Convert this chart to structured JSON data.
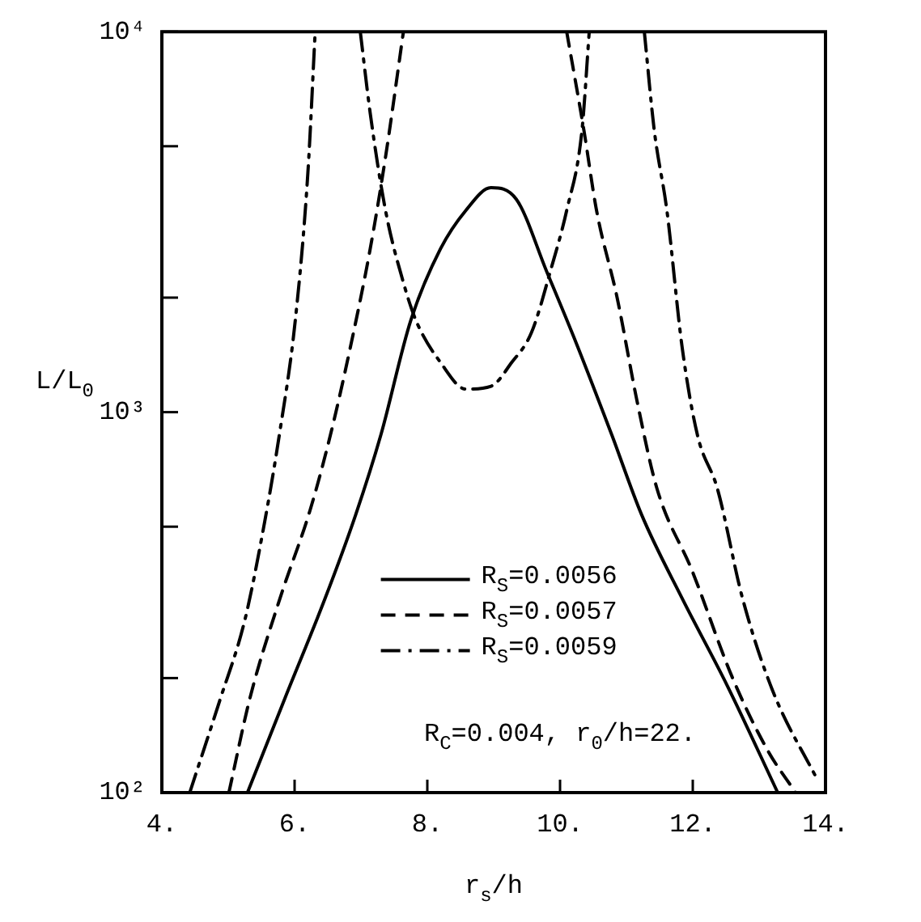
{
  "chart_data": {
    "type": "line",
    "xlabel": "r$_{s}$/h",
    "ylabel": "L/L$_{0}$",
    "log": "y",
    "grid": false,
    "legend": "bottom",
    "marker": "none",
    "xlim": [
      4,
      14
    ],
    "xticks": [
      {
        "value": 4,
        "label": "4."
      },
      {
        "value": 6,
        "label": "6."
      },
      {
        "value": 8,
        "label": "8."
      },
      {
        "value": 10,
        "label": "10."
      },
      {
        "value": 12,
        "label": "12."
      },
      {
        "value": 14,
        "label": "14."
      }
    ],
    "ylim": [
      100,
      10000
    ],
    "yticks": [
      {
        "value": 100,
        "label": "10²"
      },
      {
        "value": 200,
        "label": null
      },
      {
        "value": 500,
        "label": null
      },
      {
        "value": 1000,
        "label": "10³"
      },
      {
        "value": 2000,
        "label": null
      },
      {
        "value": 5000,
        "label": null
      },
      {
        "value": 10000,
        "label": "10⁴"
      }
    ],
    "annotations": [
      "R$_{C}$=0.004, r$_{0}$/h=22."
    ],
    "series": [
      {
        "name": "R$_{S}$=0.0056",
        "color": "#000000",
        "line_style": "solid",
        "x": [
          5.29,
          5.86,
          6.46,
          6.92,
          7.3,
          7.75,
          8.2,
          8.58,
          8.96,
          9.34,
          9.8,
          10.25,
          10.78,
          11.23,
          11.84,
          12.52,
          13.28
        ],
        "values": [
          100,
          178,
          324,
          537,
          871,
          1740,
          2690,
          3390,
          3890,
          3630,
          2340,
          1510,
          871,
          537,
          324,
          191,
          100
        ]
      },
      {
        "name": "R$_{S}$=0.0057",
        "color": "#000000",
        "line_style": "dashed",
        "x": [
          5.01,
          5.33,
          5.78,
          6.23,
          6.54,
          6.84,
          7.14,
          7.37,
          7.64,
          8.8,
          10.1,
          10.36,
          10.55,
          10.86,
          11.16,
          11.46,
          11.99,
          12.6,
          13.13,
          13.55
        ],
        "values": [
          100,
          178,
          324,
          550,
          871,
          1480,
          2690,
          4680,
          10000,
          null,
          10000,
          5500,
          3390,
          2000,
          1070,
          630,
          383,
          200,
          129,
          100
        ]
      },
      {
        "name": "R$_{S}$=0.0059",
        "color": "#000000",
        "line_style": "dashdot",
        "x": [
          4.42,
          4.87,
          5.25,
          5.55,
          5.77,
          6.01,
          6.2,
          6.31,
          6.65,
          6.99,
          7.14,
          7.37,
          7.64,
          7.83,
          8.2,
          8.58,
          8.96,
          9.27,
          9.57,
          9.87,
          10.1,
          10.33,
          10.44,
          10.85,
          11.27,
          11.42,
          11.61,
          11.84,
          12.07,
          12.37,
          12.75,
          13.2,
          13.89
        ],
        "values": [
          100,
          174,
          284,
          516,
          871,
          1740,
          4250,
          10000,
          null,
          10000,
          6100,
          3390,
          2190,
          1740,
          1350,
          1150,
          1170,
          1350,
          1620,
          2400,
          3390,
          5500,
          10000,
          null,
          10000,
          5500,
          3390,
          1480,
          871,
          630,
          324,
          186,
          107
        ]
      }
    ]
  }
}
